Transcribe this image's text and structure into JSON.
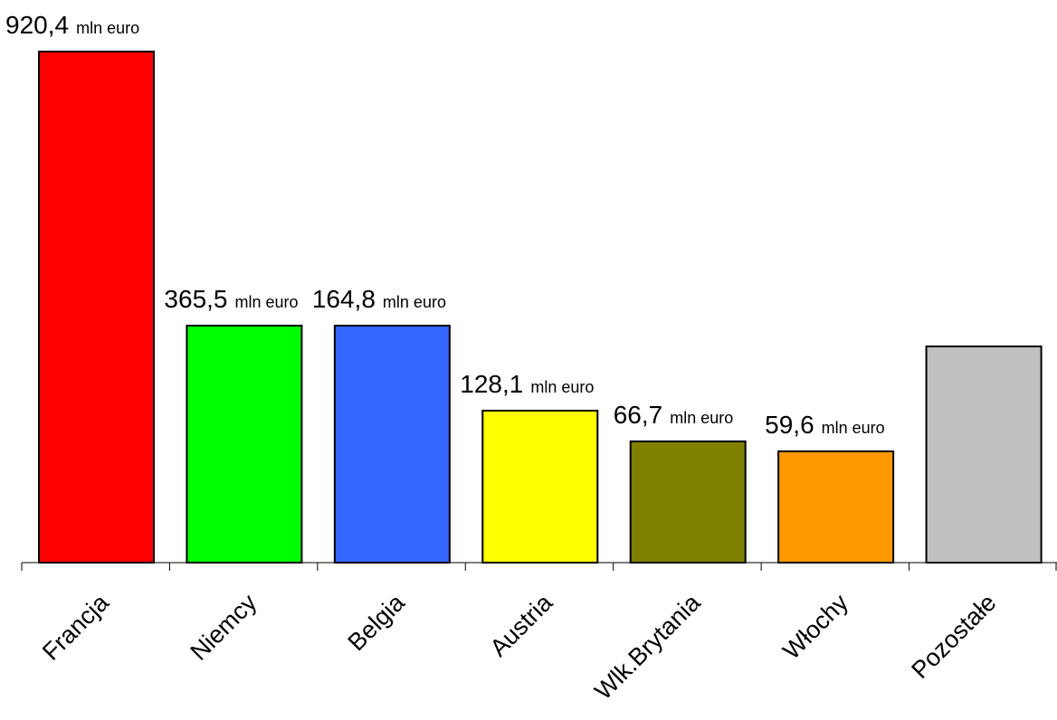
{
  "chart_data": {
    "type": "bar",
    "categories": [
      "Francja",
      "Niemcy",
      "Belgia",
      "Austria",
      "Wlk.Brytania",
      "Włochy",
      "Pozostałe"
    ],
    "values": [
      920.4,
      365.5,
      164.8,
      128.1,
      66.7,
      59.6,
      320
    ],
    "data_labels": [
      {
        "number": "920,4",
        "unit": "mln euro"
      },
      {
        "number": "365,5",
        "unit": "mln euro"
      },
      {
        "number": "164,8",
        "unit": "mln euro"
      },
      {
        "number": "128,1",
        "unit": "mln euro"
      },
      {
        "number": "66,7",
        "unit": "mln euro"
      },
      {
        "number": "59,6",
        "unit": "mln euro"
      },
      null
    ],
    "colors": [
      "#FF0000",
      "#00FF00",
      "#3366FF",
      "#FFFF00",
      "#808000",
      "#FF9900",
      "#C0C0C0"
    ],
    "title": "",
    "xlabel": "",
    "ylabel": "",
    "grid": false,
    "legend": "none"
  }
}
